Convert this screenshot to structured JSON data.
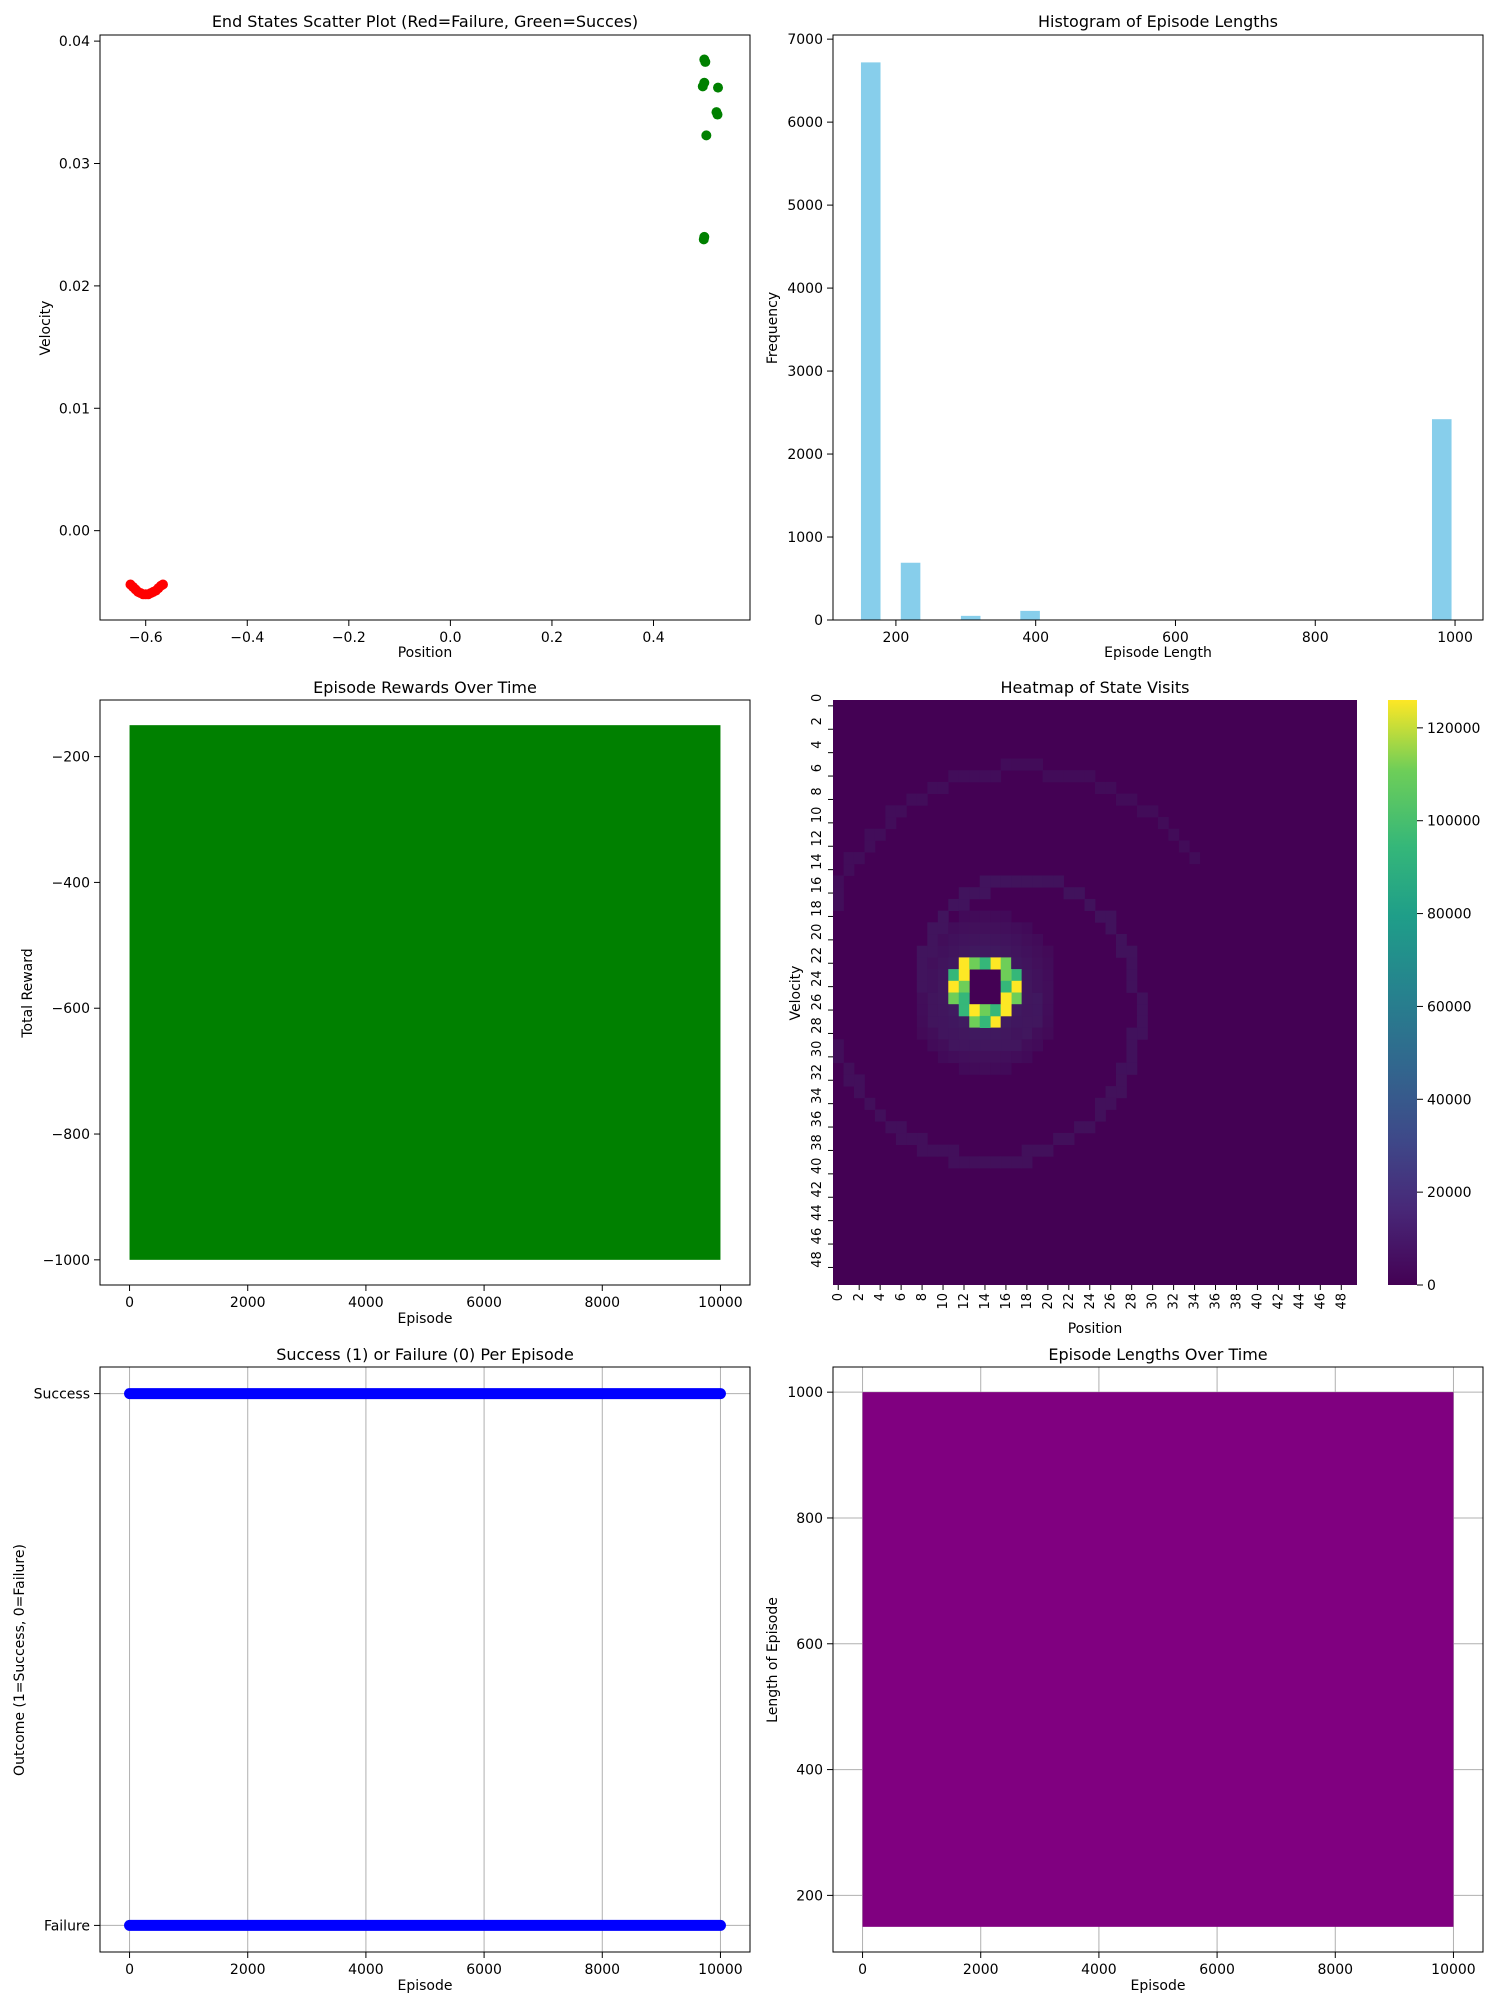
{
  "chart_data": [
    {
      "type": "scatter",
      "title": "End States Scatter Plot (Red=Failure, Green=Succes)",
      "xlabel": "Position",
      "ylabel": "Velocity",
      "xlim": [
        -0.69,
        0.59
      ],
      "ylim": [
        -0.0073,
        0.0405
      ],
      "xticks": [
        -0.6,
        -0.4,
        -0.2,
        0.0,
        0.2,
        0.4
      ],
      "xtick_labels": [
        "−0.6",
        "−0.4",
        "−0.2",
        "0.0",
        "0.2",
        "0.4"
      ],
      "yticks": [
        0.0,
        0.01,
        0.02,
        0.03,
        0.04
      ],
      "ytick_labels": [
        "0.00",
        "0.01",
        "0.02",
        "0.03",
        "0.04"
      ],
      "series": [
        {
          "color": "#ff0000",
          "points": [
            [
              -0.63,
              -0.0044
            ],
            [
              -0.625,
              -0.0046
            ],
            [
              -0.62,
              -0.0048
            ],
            [
              -0.615,
              -0.005
            ],
            [
              -0.61,
              -0.0051
            ],
            [
              -0.605,
              -0.0052
            ],
            [
              -0.6,
              -0.0052
            ],
            [
              -0.595,
              -0.0052
            ],
            [
              -0.59,
              -0.0051
            ],
            [
              -0.585,
              -0.005
            ],
            [
              -0.58,
              -0.0049
            ],
            [
              -0.575,
              -0.0047
            ],
            [
              -0.57,
              -0.0045
            ],
            [
              -0.566,
              -0.0044
            ]
          ]
        },
        {
          "color": "#008000",
          "points": [
            [
              0.5,
              0.0385
            ],
            [
              0.502,
              0.0383
            ],
            [
              0.5,
              0.0366
            ],
            [
              0.497,
              0.0363
            ],
            [
              0.527,
              0.0362
            ],
            [
              0.524,
              0.0342
            ],
            [
              0.526,
              0.034
            ],
            [
              0.504,
              0.0323
            ],
            [
              0.5,
              0.024
            ],
            [
              0.499,
              0.0238
            ]
          ]
        }
      ]
    },
    {
      "type": "bar",
      "title": "Histogram of Episode Lengths",
      "xlabel": "Episode Length",
      "ylabel": "Frequency",
      "xlim": [
        110,
        1040
      ],
      "ylim": [
        0,
        7050
      ],
      "xticks": [
        200,
        400,
        600,
        800,
        1000
      ],
      "yticks": [
        0,
        1000,
        2000,
        3000,
        4000,
        5000,
        6000,
        7000
      ],
      "color": "#87ceeb",
      "bins": [
        {
          "x0": 150,
          "x1": 178,
          "value": 6720
        },
        {
          "x0": 207,
          "x1": 235,
          "value": 690
        },
        {
          "x0": 293,
          "x1": 321,
          "value": 50
        },
        {
          "x0": 378,
          "x1": 406,
          "value": 110
        },
        {
          "x0": 967,
          "x1": 995,
          "value": 2420
        }
      ]
    },
    {
      "type": "line",
      "title": "Episode Rewards Over Time",
      "xlabel": "Episode",
      "ylabel": "Total Reward",
      "xlim": [
        -500,
        10500
      ],
      "ylim": [
        -1040,
        -110
      ],
      "xticks": [
        0,
        2000,
        4000,
        6000,
        8000,
        10000
      ],
      "yticks": [
        -200,
        -400,
        -600,
        -800,
        -1000
      ],
      "ytick_labels": [
        "−200",
        "−400",
        "−600",
        "−800",
        "−1000"
      ],
      "color": "#008000",
      "x_range": [
        0,
        10000
      ],
      "y_min": -1000,
      "y_max": -150
    },
    {
      "type": "heatmap",
      "title": "Heatmap of State Visits",
      "xlabel": "Position",
      "ylabel": "Velocity",
      "size": 50,
      "tick_step": 2,
      "colorbar_ticks": [
        0,
        20000,
        40000,
        60000,
        80000,
        100000,
        120000
      ],
      "vmax": 126000,
      "bright_ring": {
        "center": [
          14,
          24.5
        ],
        "cells": [
          [
            12,
            22
          ],
          [
            13,
            22
          ],
          [
            14,
            22
          ],
          [
            15,
            22
          ],
          [
            16,
            22
          ],
          [
            11,
            23
          ],
          [
            12,
            23
          ],
          [
            16,
            23
          ],
          [
            17,
            23
          ],
          [
            11,
            24
          ],
          [
            12,
            24
          ],
          [
            16,
            24
          ],
          [
            17,
            24
          ],
          [
            11,
            25
          ],
          [
            12,
            25
          ],
          [
            16,
            25
          ],
          [
            17,
            25
          ],
          [
            12,
            26
          ],
          [
            13,
            26
          ],
          [
            14,
            26
          ],
          [
            15,
            26
          ],
          [
            16,
            26
          ],
          [
            13,
            27
          ],
          [
            14,
            27
          ],
          [
            15,
            27
          ]
        ]
      },
      "faint_spiral": "low-count trajectory spiral around the ring"
    },
    {
      "type": "scatter",
      "title": "Success (1) or Failure (0) Per Episode",
      "xlabel": "Episode",
      "ylabel": "Outcome (1=Success, 0=Failure)",
      "xlim": [
        -500,
        10500
      ],
      "ylim": [
        -0.05,
        1.05
      ],
      "xticks": [
        0,
        2000,
        4000,
        6000,
        8000,
        10000
      ],
      "ytick_labels": [
        "Failure",
        "Success"
      ],
      "grid": true,
      "color": "#0000ff",
      "levels": [
        0,
        1
      ],
      "x_range": [
        0,
        10000
      ]
    },
    {
      "type": "line",
      "title": "Episode Lengths Over Time",
      "xlabel": "Episode",
      "ylabel": "Length of Episode",
      "xlim": [
        -500,
        10500
      ],
      "ylim": [
        110,
        1040
      ],
      "xticks": [
        0,
        2000,
        4000,
        6000,
        8000,
        10000
      ],
      "yticks": [
        200,
        400,
        600,
        800,
        1000
      ],
      "grid": true,
      "color": "#800080",
      "x_range": [
        0,
        10000
      ],
      "y_min": 150,
      "y_max": 1000
    }
  ]
}
